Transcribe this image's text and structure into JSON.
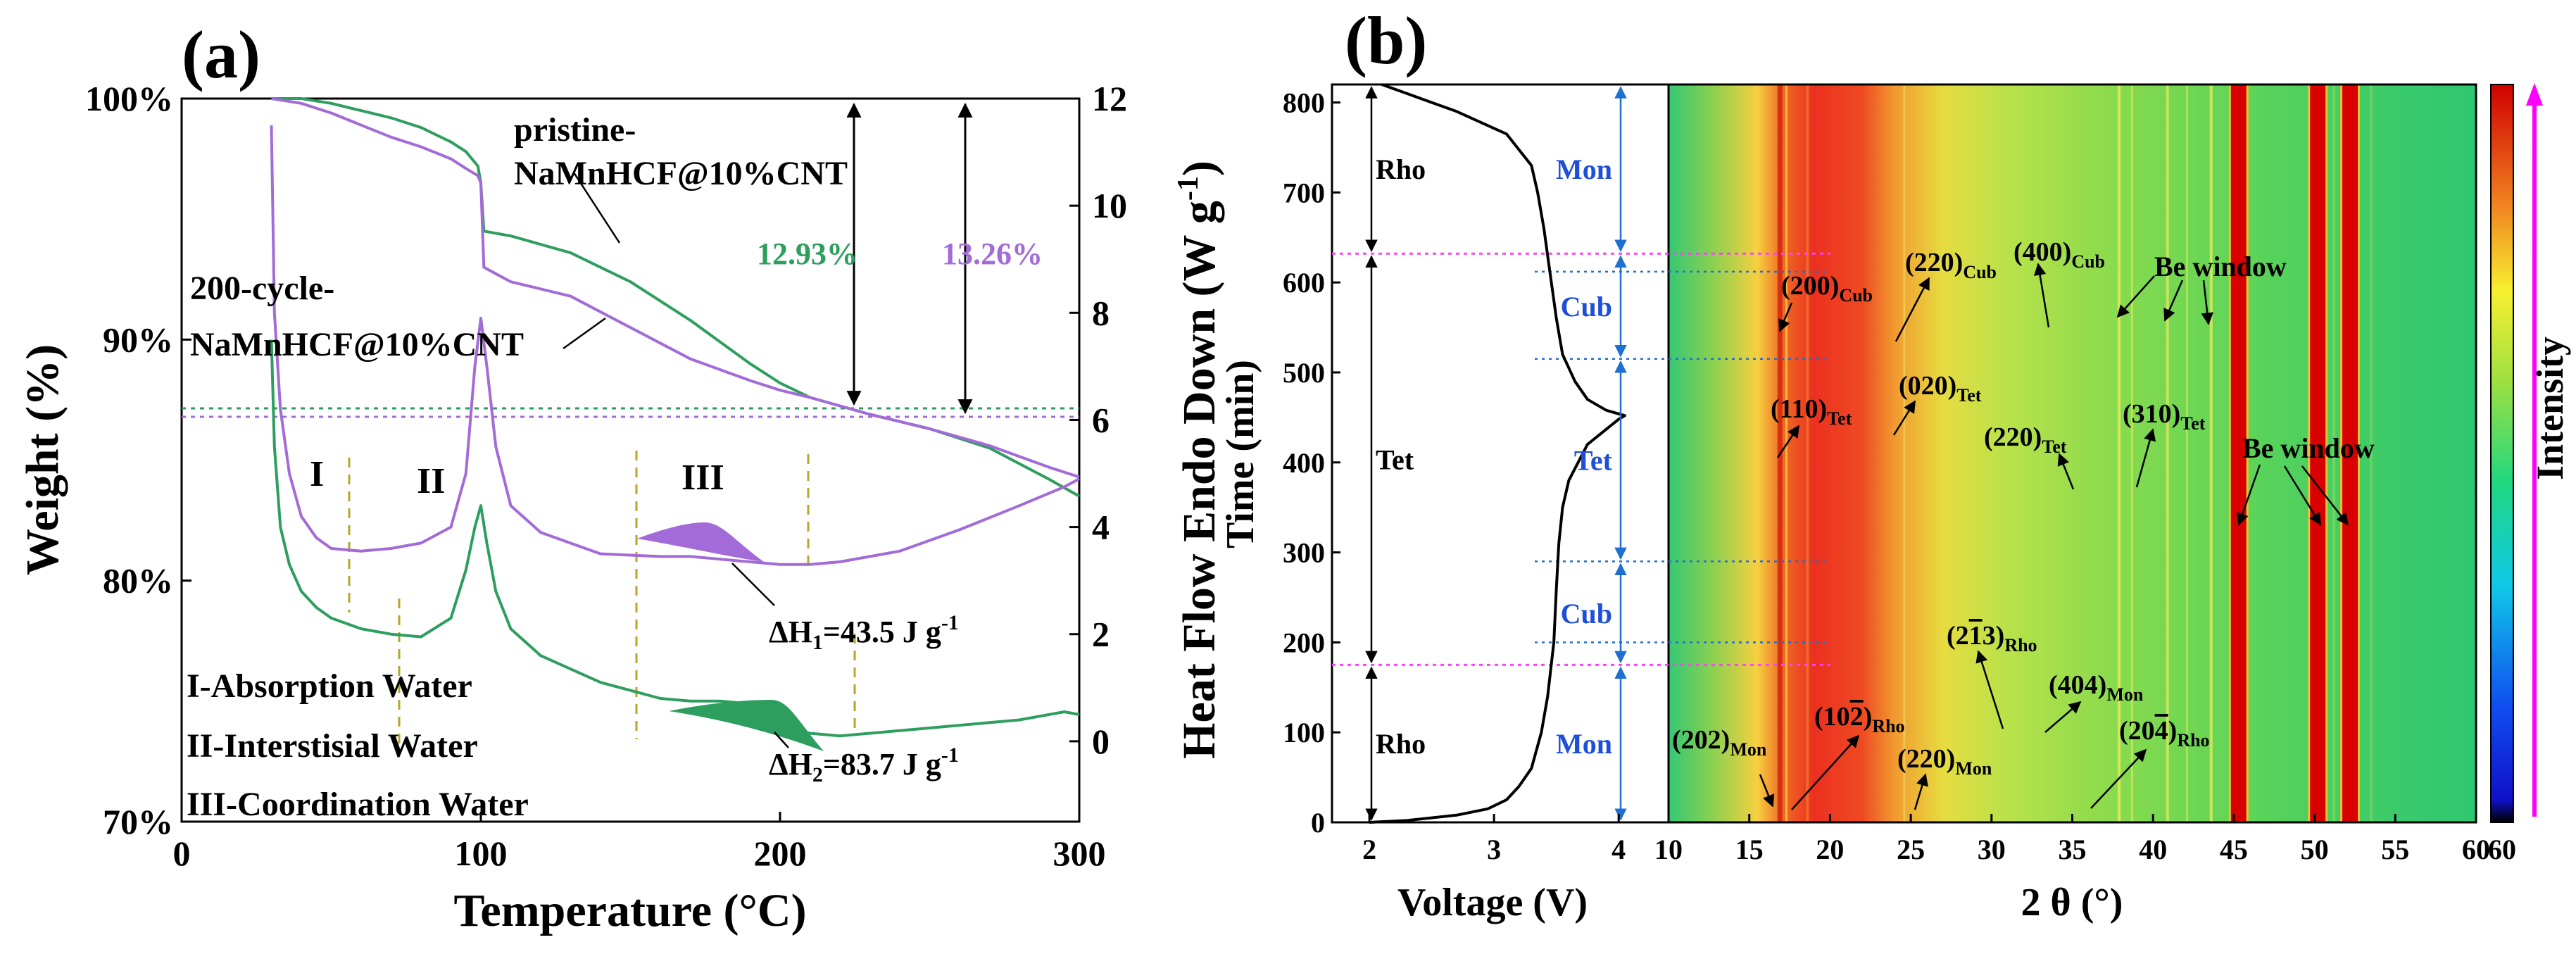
{
  "chart_data": [
    {
      "panel_label": "(a)",
      "type": "line",
      "xlabel": "Temperature (°C)",
      "ylabel_left": "Weight (%)",
      "ylabel_right": "Heat Flow Endo Down (W g-1)",
      "ylabel_right_main": "Heat Flow Endo Down (W g",
      "ylabel_right_sup": "-1",
      "ylabel_right_close": ")",
      "xlim": [
        0,
        300
      ],
      "ylim_left": [
        70,
        100
      ],
      "ylim_right": [
        -1.5,
        12
      ],
      "xticks": [
        0,
        100,
        200,
        300
      ],
      "yticks_left": [
        "70%",
        "80%",
        "90%",
        "100%"
      ],
      "yticks_right": [
        0,
        2,
        4,
        6,
        8,
        10,
        12
      ],
      "colors": {
        "pristine": "#2e9e5e",
        "cycled": "#a36bd8",
        "fill_green": "#2e9e5e",
        "fill_purple": "#a36bd8"
      },
      "series": [
        {
          "name": "pristine-NaMnHCF@10%CNT TG",
          "axis": "left",
          "color": "#2e9e5e",
          "x": [
            30,
            40,
            50,
            60,
            70,
            80,
            90,
            95,
            99,
            100,
            101,
            110,
            130,
            150,
            170,
            190,
            200,
            210,
            230,
            250,
            270,
            290,
            300
          ],
          "y": [
            100,
            100,
            99.8,
            99.5,
            99.2,
            98.8,
            98.2,
            97.8,
            97.2,
            96.5,
            94.5,
            94.3,
            93.6,
            92.4,
            90.8,
            89.0,
            88.2,
            87.6,
            86.9,
            86.3,
            85.5,
            84.2,
            83.5
          ]
        },
        {
          "name": "200-cycle-NaMnHCF@10%CNT TG",
          "axis": "left",
          "color": "#a36bd8",
          "x": [
            30,
            40,
            50,
            60,
            70,
            80,
            90,
            95,
            99,
            100,
            101,
            110,
            130,
            150,
            170,
            190,
            200,
            210,
            230,
            250,
            270,
            290,
            300
          ],
          "y": [
            100,
            99.8,
            99.4,
            98.9,
            98.4,
            98.0,
            97.5,
            97.1,
            96.8,
            96.5,
            93.0,
            92.4,
            91.8,
            90.5,
            89.2,
            88.3,
            87.9,
            87.6,
            86.9,
            86.3,
            85.6,
            84.7,
            84.3
          ]
        },
        {
          "name": "pristine-NaMnHCF@10%CNT DSC",
          "axis": "right",
          "color": "#2e9e5e",
          "x": [
            30,
            31,
            33,
            36,
            40,
            45,
            50,
            60,
            70,
            80,
            90,
            95,
            98,
            100,
            102,
            105,
            110,
            120,
            140,
            160,
            170,
            180,
            190,
            200,
            210,
            220,
            240,
            260,
            280,
            295,
            300
          ],
          "y": [
            7.5,
            5.5,
            4.0,
            3.3,
            2.8,
            2.5,
            2.3,
            2.1,
            2.0,
            1.95,
            2.3,
            3.2,
            4.0,
            4.4,
            3.7,
            2.8,
            2.1,
            1.6,
            1.1,
            0.8,
            0.75,
            0.75,
            0.7,
            0.3,
            0.15,
            0.1,
            0.2,
            0.3,
            0.4,
            0.55,
            0.5
          ]
        },
        {
          "name": "200-cycle-NaMnHCF@10%CNT DSC",
          "axis": "right",
          "color": "#a36bd8",
          "x": [
            30,
            30.5,
            31,
            33,
            36,
            40,
            45,
            50,
            60,
            70,
            80,
            90,
            95,
            98,
            100,
            102,
            105,
            110,
            120,
            140,
            160,
            170,
            180,
            190,
            200,
            210,
            220,
            240,
            260,
            280,
            295,
            300
          ],
          "y": [
            11.5,
            9.8,
            8.0,
            6.2,
            5.0,
            4.2,
            3.8,
            3.6,
            3.55,
            3.6,
            3.7,
            4.0,
            5.0,
            7.0,
            7.9,
            7.0,
            5.5,
            4.4,
            3.9,
            3.5,
            3.45,
            3.45,
            3.4,
            3.35,
            3.3,
            3.3,
            3.35,
            3.55,
            3.95,
            4.4,
            4.75,
            4.9
          ]
        }
      ],
      "labels": {
        "pristine_1": "pristine-",
        "pristine_2": "NaMnHCF@10%CNT",
        "cycled_1": "200-cycle-",
        "cycled_2": "NaMnHCF@10%CNT",
        "pct_green": "12.93%",
        "pct_purple": "13.26%",
        "region_1": "I",
        "region_2": "II",
        "region_3": "III",
        "dh1_main": "ΔH",
        "dh1_sub": "1",
        "dh1_val": "=43.5 J g",
        "dh1_sup": "-1",
        "dh2_main": "ΔH",
        "dh2_sub": "2",
        "dh2_val": "=83.7 J g",
        "dh2_sup": "-1",
        "legend_1": "I-Absorption Water",
        "legend_2": "II-Interstisial Water",
        "legend_3": "III-Coordination Water"
      }
    },
    {
      "panel_label": "(b)",
      "type": "heatmap",
      "left_plot": {
        "xlabel": "Voltage (V)",
        "ylabel": "Time (min)",
        "xlim": [
          1.7,
          4.4
        ],
        "ylim": [
          0,
          820
        ],
        "xticks": [
          2,
          3,
          4
        ],
        "yticks": [
          0,
          100,
          200,
          300,
          400,
          500,
          600,
          700,
          800
        ],
        "voltage_curve": {
          "v": [
            2.0,
            2.3,
            2.7,
            2.95,
            3.1,
            3.2,
            3.3,
            3.38,
            3.43,
            3.48,
            3.5,
            3.52,
            3.55,
            3.6,
            3.75,
            4.0,
            4.05,
            3.9,
            3.75,
            3.65,
            3.55,
            3.5,
            3.45,
            3.4,
            3.35,
            3.3,
            3.1,
            2.7,
            2.3,
            2.1
          ],
          "t": [
            0,
            2,
            8,
            15,
            25,
            40,
            60,
            100,
            140,
            200,
            260,
            310,
            350,
            380,
            420,
            448,
            452,
            458,
            470,
            490,
            520,
            560,
            610,
            660,
            700,
            730,
            765,
            790,
            810,
            820
          ]
        },
        "phases_left": [
          {
            "name": "Rho",
            "t0": 0,
            "t1": 175
          },
          {
            "name": "Tet",
            "t0": 175,
            "t1": 632
          },
          {
            "name": "Rho",
            "t0": 632,
            "t1": 820
          }
        ],
        "phases_right": [
          {
            "name": "Mon",
            "t0": 0,
            "t1": 175
          },
          {
            "name": "Cub",
            "t0": 175,
            "t1": 290
          },
          {
            "name": "Tet",
            "t0": 290,
            "t1": 515
          },
          {
            "name": "Cub",
            "t0": 515,
            "t1": 632
          },
          {
            "name": "Mon",
            "t0": 632,
            "t1": 820
          }
        ],
        "boundaries_pink": [
          175,
          632
        ],
        "boundaries_blue": [
          200,
          290,
          515,
          612
        ]
      },
      "heatmap": {
        "xlabel": "2 θ (°)",
        "xlim": [
          10,
          60
        ],
        "xticks": [
          10,
          15,
          20,
          25,
          30,
          35,
          40,
          45,
          50,
          55,
          60
        ],
        "colorbar_label": "Intensity",
        "bright_lines_2theta": [
          45.3,
          50.2,
          52.2
        ],
        "peak_labels": [
          {
            "main": "(200)",
            "sub": "Cub"
          },
          {
            "main": "(220)",
            "sub": "Cub"
          },
          {
            "main": "(400)",
            "sub": "Cub"
          },
          {
            "main": "Be window",
            "sub": ""
          },
          {
            "main": "(110)",
            "sub": "Tet"
          },
          {
            "main": "(020)",
            "sub": "Tet"
          },
          {
            "main": "(220)",
            "sub": "Tet"
          },
          {
            "main": "(310)",
            "sub": "Tet"
          },
          {
            "main": "Be window",
            "sub": ""
          },
          {
            "main": "(2",
            "bar": "1",
            "tail": "3)",
            "sub": "Rho"
          },
          {
            "main": "(404)",
            "sub": "Mon"
          },
          {
            "main": "(202)",
            "sub": "Mon"
          },
          {
            "main": "(10",
            "bar": "2",
            "tail": ")",
            "sub": "Rho"
          },
          {
            "main": "(220)",
            "sub": "Mon"
          },
          {
            "main": "(20",
            "bar": "4",
            "tail": ")",
            "sub": "Rho"
          }
        ]
      }
    }
  ]
}
